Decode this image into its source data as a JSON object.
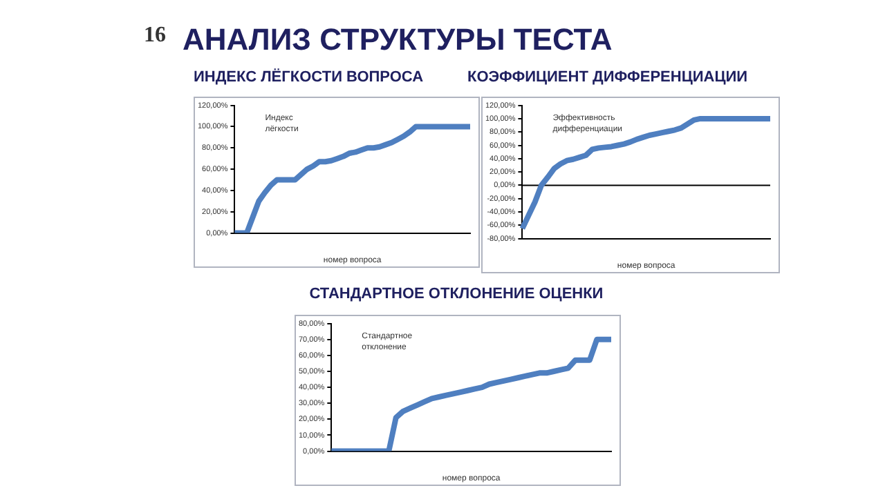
{
  "chart_data": [
    {
      "type": "line",
      "title": "ИНДЕКС ЛЁГКОСТИ ВОПРОСА",
      "xlabel": "номер вопроса",
      "annotations": [
        "16",
        "АНАЛИЗ СТРУКТУРЫ ТЕСТА",
        "Индекс лёгкости"
      ],
      "categories": [
        null,
        null,
        null,
        null,
        null,
        null,
        null,
        null,
        null,
        null,
        null,
        null,
        null,
        null,
        null,
        null,
        null,
        null,
        null,
        null,
        null,
        null,
        null,
        null,
        null,
        null,
        null,
        null,
        null,
        null,
        null,
        null,
        null,
        null,
        null,
        null,
        null,
        null,
        null,
        null
      ],
      "series": [
        {
          "color": "#4f7fc0",
          "values": [
            0,
            0,
            0,
            15,
            30,
            38,
            45,
            50,
            50,
            50,
            50,
            55,
            60,
            63,
            67,
            67,
            68,
            70,
            72,
            75,
            76,
            78,
            80,
            80,
            81,
            83,
            85,
            88,
            91,
            95,
            100,
            100,
            100,
            100,
            100,
            100,
            100,
            100,
            100,
            100
          ]
        }
      ],
      "ylim": [
        0,
        120
      ],
      "yticks": [
        {
          "value": 0,
          "label": "0,00%"
        },
        {
          "value": 20,
          "label": "20,00%"
        },
        {
          "value": 40,
          "label": "40,00%"
        },
        {
          "value": 60,
          "label": "60,00%"
        },
        {
          "value": 80,
          "label": "80,00%"
        },
        {
          "value": 100,
          "label": "100,00%"
        },
        {
          "value": 120,
          "label": "120,00%"
        }
      ],
      "grid": false,
      "legend": false
    },
    {
      "type": "line",
      "title": "КОЭФФИЦИЕНТ ДИФФЕРЕНЦИАЦИИ",
      "xlabel": "номер вопроса",
      "annotations": [
        "Эффективность дифференциации"
      ],
      "categories": [
        null,
        null,
        null,
        null,
        null,
        null,
        null,
        null,
        null,
        null,
        null,
        null,
        null,
        null,
        null,
        null,
        null,
        null,
        null,
        null,
        null,
        null,
        null,
        null,
        null,
        null,
        null,
        null,
        null,
        null,
        null,
        null,
        null,
        null,
        null,
        null,
        null,
        null,
        null,
        null
      ],
      "series": [
        {
          "color": "#4f7fc0",
          "values": [
            -65,
            -45,
            -25,
            0,
            12,
            25,
            32,
            37,
            39,
            42,
            45,
            54,
            56,
            57,
            58,
            60,
            62,
            65,
            69,
            72,
            75,
            77,
            79,
            81,
            83,
            86,
            92,
            98,
            100,
            100,
            100,
            100,
            100,
            100,
            100,
            100,
            100,
            100,
            100,
            100
          ]
        }
      ],
      "ylim": [
        -80,
        120
      ],
      "yticks": [
        {
          "value": -80,
          "label": "-80,00%"
        },
        {
          "value": -60,
          "label": "-60,00%"
        },
        {
          "value": -40,
          "label": "-40,00%"
        },
        {
          "value": -20,
          "label": "-20,00%"
        },
        {
          "value": 0,
          "label": "0,00%"
        },
        {
          "value": 20,
          "label": "20,00%"
        },
        {
          "value": 40,
          "label": "40,00%"
        },
        {
          "value": 60,
          "label": "60,00%"
        },
        {
          "value": 80,
          "label": "80,00%"
        },
        {
          "value": 100,
          "label": "100,00%"
        },
        {
          "value": 120,
          "label": "120,00%"
        }
      ],
      "ref_lines": [
        {
          "axis": "y",
          "value": 0,
          "color": "#000000"
        }
      ],
      "grid": false,
      "legend": false
    },
    {
      "type": "line",
      "title": "СТАНДАРТНОЕ ОТКЛОНЕНИЕ ОЦЕНКИ",
      "xlabel": "номер вопроса",
      "annotations": [
        "Стандартное отклонение"
      ],
      "categories": [
        null,
        null,
        null,
        null,
        null,
        null,
        null,
        null,
        null,
        null,
        null,
        null,
        null,
        null,
        null,
        null,
        null,
        null,
        null,
        null,
        null,
        null,
        null,
        null,
        null,
        null,
        null,
        null,
        null,
        null,
        null,
        null,
        null,
        null,
        null,
        null,
        null,
        null,
        null,
        null
      ],
      "series": [
        {
          "color": "#4f7fc0",
          "values": [
            0,
            0,
            0,
            0,
            0,
            0,
            0,
            0,
            0,
            21,
            25,
            27,
            29,
            31,
            33,
            34,
            35,
            36,
            37,
            38,
            39,
            40,
            42,
            43,
            44,
            45,
            46,
            47,
            48,
            49,
            49,
            50,
            51,
            52,
            57,
            57,
            57,
            70,
            70,
            70
          ]
        }
      ],
      "ylim": [
        0,
        80
      ],
      "yticks": [
        {
          "value": 0,
          "label": "0,00%"
        },
        {
          "value": 10,
          "label": "10,00%"
        },
        {
          "value": 20,
          "label": "20,00%"
        },
        {
          "value": 30,
          "label": "30,00%"
        },
        {
          "value": 40,
          "label": "40,00%"
        },
        {
          "value": 50,
          "label": "50,00%"
        },
        {
          "value": 60,
          "label": "60,00%"
        },
        {
          "value": 70,
          "label": "70,00%"
        },
        {
          "value": 80,
          "label": "80,00%"
        }
      ],
      "grid": false,
      "legend": false
    }
  ]
}
